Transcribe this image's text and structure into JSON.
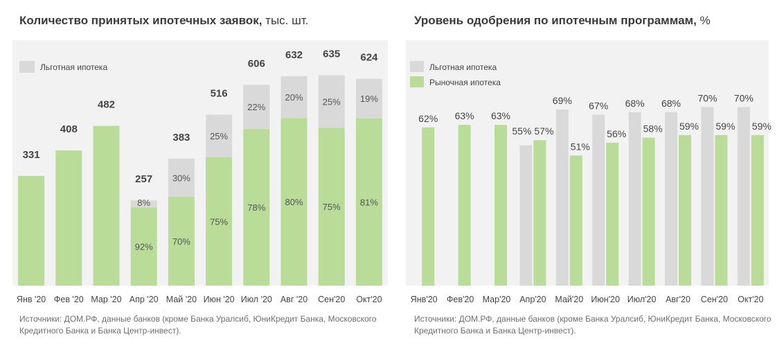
{
  "chart_data": [
    {
      "type": "bar",
      "title": "Количество принятых ипотечных заявок,",
      "title_unit": "тыс. шт.",
      "categories": [
        "Янв '20",
        "Фев '20",
        "Мар '20",
        "Апр '20",
        "Май '20",
        "Июн '20",
        "Июл '20",
        "Авг '20",
        "Сен'20",
        "Окт'20"
      ],
      "totals": [
        "331",
        "408",
        "482",
        "257",
        "383",
        "516",
        "606",
        "632",
        "635",
        "624"
      ],
      "total_values": [
        331,
        408,
        482,
        257,
        383,
        516,
        606,
        632,
        635,
        624
      ],
      "series": [
        {
          "name": "",
          "color": "#b9dc98",
          "values": [
            331,
            408,
            482,
            236,
            268,
            387,
            473,
            506,
            476,
            505
          ],
          "labels": [
            "",
            "",
            "",
            "92%",
            "70%",
            "75%",
            "78%",
            "80%",
            "75%",
            "81%"
          ]
        },
        {
          "name": "Льготная ипотека",
          "color": "#d9d9d9",
          "values": [
            0,
            0,
            0,
            21,
            115,
            129,
            133,
            126,
            159,
            119
          ],
          "labels": [
            "",
            "",
            "",
            "8%",
            "30%",
            "25%",
            "22%",
            "20%",
            "25%",
            "19%"
          ]
        }
      ],
      "ylim": [
        0,
        700
      ],
      "legend": "top-left",
      "grid": false,
      "stacked": true,
      "source": "Источники: ДОМ.РФ, данные банков (кроме Банка Уралсиб, ЮниКредит Банка, Московского Кредитного Банка и Банка Центр-инвест)."
    },
    {
      "type": "bar",
      "title": "Уровень одобрения по ипотечным программам,",
      "title_unit": "%",
      "categories": [
        "Янв'20",
        "Фев'20",
        "Мар'20",
        "Апр'20",
        "Май'20",
        "Июн'20",
        "Июл'20",
        "Авг'20",
        "Сен'20",
        "Окт'20"
      ],
      "series": [
        {
          "name": "Льготная ипотека",
          "color": "#d9d9d9",
          "values": [
            null,
            null,
            null,
            55,
            69,
            67,
            68,
            68,
            70,
            70
          ],
          "labels": [
            "",
            "",
            "",
            "55%",
            "69%",
            "67%",
            "68%",
            "68%",
            "70%",
            "70%"
          ]
        },
        {
          "name": "Рыночная ипотека",
          "color": "#b9dc98",
          "values": [
            62,
            63,
            63,
            57,
            51,
            56,
            58,
            59,
            59,
            59
          ],
          "labels": [
            "62%",
            "63%",
            "63%",
            "57%",
            "51%",
            "56%",
            "58%",
            "59%",
            "59%",
            "59%"
          ]
        }
      ],
      "ylim": [
        0,
        100
      ],
      "legend": "top-left",
      "grid": false,
      "stacked": false,
      "source": "Источники: ДОМ.РФ, данные банков (кроме Банка Уралсиб, ЮниКредит Банка, Московского Кредитного Банка и Банка Центр-инвест)."
    }
  ]
}
